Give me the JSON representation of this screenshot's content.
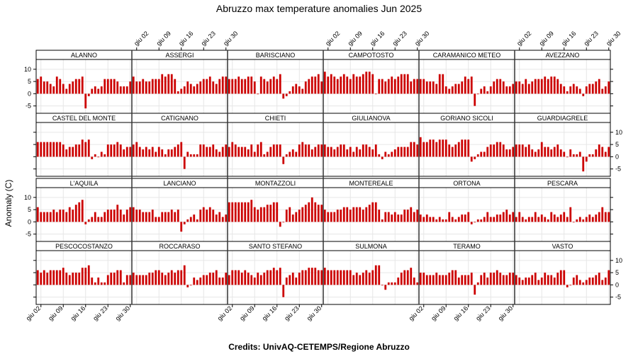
{
  "title": "Abruzzo max temperature anomalies Jun 2025",
  "ylabel": "Anomaly (C)",
  "credits": "Credits: UnivAQ-CETEMPS/Regione Abruzzo",
  "colors": {
    "bar": "#cc0000",
    "grid": "#e6e6e6",
    "frame": "#000000",
    "strip": "#ffffff"
  },
  "chart_data": {
    "type": "bar",
    "layout": {
      "columns": 6,
      "rows": 4
    },
    "x": {
      "start_day": 1,
      "days": 30,
      "tick_days": [
        2,
        9,
        16,
        23,
        30
      ],
      "tick_labels": [
        "giu 02",
        "giu 09",
        "giu 16",
        "giu 23",
        "giu 30"
      ]
    },
    "y": {
      "ylim": [
        -8,
        14
      ],
      "ticks": [
        -5,
        0,
        5,
        10
      ],
      "tick_labels": [
        "-5",
        "0",
        "5",
        "10"
      ]
    },
    "grid": true,
    "panels": [
      {
        "name": "ALANNO",
        "values": [
          6,
          7,
          5,
          5,
          4,
          3,
          7,
          6,
          4,
          2,
          4,
          5,
          6,
          6,
          7,
          -6,
          -1,
          2,
          3,
          2,
          3,
          6,
          6,
          6,
          6,
          5,
          3,
          3,
          3,
          5
        ]
      },
      {
        "name": "ASSERGI",
        "values": [
          7,
          5,
          5,
          6,
          5,
          5,
          6,
          6,
          6,
          8,
          7,
          8,
          8,
          6,
          1,
          2,
          3,
          5,
          4,
          3,
          4,
          5,
          6,
          6,
          7,
          5,
          4,
          6,
          7,
          7
        ]
      },
      {
        "name": "BARISCIANO",
        "values": [
          6,
          6,
          6,
          7,
          6,
          6,
          7,
          7,
          5,
          0,
          7,
          6,
          5,
          6,
          7,
          6,
          8,
          -2,
          -1,
          1,
          3,
          4,
          3,
          2,
          5,
          6,
          7,
          7,
          8,
          5
        ]
      },
      {
        "name": "CAMPOTOSTO",
        "values": [
          9,
          7,
          8,
          7,
          6,
          7,
          8,
          7,
          6,
          8,
          7,
          7,
          8,
          9,
          9,
          8,
          0,
          6,
          6,
          5,
          6,
          7,
          6,
          7,
          8,
          8,
          8,
          5,
          6,
          6
        ]
      },
      {
        "name": "CARAMANICO METEO",
        "values": [
          6,
          6,
          5,
          5,
          5,
          4,
          8,
          8,
          3,
          2,
          3,
          4,
          4,
          5,
          7,
          6,
          7,
          -5,
          0,
          2,
          3,
          1,
          3,
          5,
          6,
          6,
          5,
          3,
          3,
          4
        ]
      },
      {
        "name": "AVEZZANO",
        "values": [
          5,
          5,
          4,
          6,
          4,
          5,
          6,
          6,
          6,
          7,
          6,
          7,
          7,
          6,
          4,
          3,
          1,
          3,
          4,
          3,
          2,
          -1,
          3,
          4,
          4,
          5,
          6,
          2,
          3,
          5
        ]
      },
      {
        "name": "CASTEL DEL MONTE",
        "values": [
          6,
          6,
          6,
          6,
          6,
          6,
          6,
          6,
          5,
          3,
          4,
          4,
          5,
          5,
          7,
          6,
          7,
          -1,
          1,
          0,
          2,
          1,
          5,
          5,
          5,
          6,
          5,
          3,
          4,
          4
        ]
      },
      {
        "name": "CATIGNANO",
        "values": [
          5,
          6,
          4,
          3,
          4,
          3,
          4,
          2,
          4,
          3,
          1,
          3,
          3,
          4,
          5,
          6,
          -5,
          2,
          1,
          1,
          1,
          5,
          5,
          4,
          4,
          5,
          3,
          2,
          4,
          5
        ]
      },
      {
        "name": "CHIETI",
        "values": [
          4,
          6,
          5,
          4,
          4,
          4,
          3,
          5,
          2,
          5,
          6,
          1,
          2,
          4,
          5,
          5,
          5,
          -3,
          1,
          2,
          3,
          2,
          5,
          6,
          5,
          5,
          3,
          4,
          5,
          5
        ]
      },
      {
        "name": "GIULIANOVA",
        "values": [
          5,
          4,
          4,
          3,
          4,
          5,
          5,
          3,
          4,
          2,
          4,
          3,
          5,
          5,
          4,
          3,
          5,
          1,
          -1,
          2,
          1,
          2,
          3,
          4,
          4,
          4,
          4,
          6,
          6,
          5
        ]
      },
      {
        "name": "GORIANO SICOLI",
        "values": [
          8,
          6,
          6,
          7,
          7,
          6,
          7,
          7,
          7,
          5,
          4,
          5,
          6,
          7,
          7,
          7,
          -2,
          -1,
          1,
          2,
          2,
          4,
          5,
          5,
          6,
          6,
          5,
          3,
          3,
          4
        ]
      },
      {
        "name": "GUARDIAGRELE",
        "values": [
          5,
          5,
          5,
          4,
          5,
          3,
          2,
          3,
          6,
          4,
          4,
          3,
          4,
          5,
          3,
          2,
          0,
          3,
          1,
          1,
          2,
          -6,
          -2,
          1,
          1,
          3,
          5,
          4,
          2,
          4
        ]
      },
      {
        "name": "L'AQUILA",
        "values": [
          6,
          4,
          4,
          4,
          4,
          5,
          4,
          5,
          5,
          4,
          6,
          5,
          7,
          8,
          9,
          -1,
          1,
          2,
          4,
          2,
          2,
          4,
          5,
          5,
          5,
          7,
          5,
          3,
          5,
          6
        ]
      },
      {
        "name": "LANCIANO",
        "values": [
          6,
          5,
          5,
          4,
          4,
          4,
          5,
          2,
          2,
          4,
          4,
          4,
          5,
          4,
          5,
          -4,
          -1,
          1,
          2,
          3,
          1,
          5,
          6,
          5,
          6,
          5,
          3,
          4,
          2,
          3
        ]
      },
      {
        "name": "MONTAZZOLI",
        "values": [
          8,
          8,
          8,
          8,
          8,
          8,
          8,
          9,
          6,
          5,
          6,
          6,
          7,
          7,
          8,
          8,
          -2,
          0,
          5,
          6,
          3,
          4,
          5,
          6,
          7,
          8,
          10,
          8,
          7,
          7
        ]
      },
      {
        "name": "MONTEREALE",
        "values": [
          5,
          4,
          4,
          4,
          5,
          5,
          6,
          6,
          5,
          6,
          6,
          6,
          5,
          6,
          7,
          8,
          8,
          5,
          1,
          4,
          4,
          3,
          4,
          3,
          3,
          5,
          5,
          6,
          4,
          5
        ]
      },
      {
        "name": "ORTONA",
        "values": [
          3,
          2,
          3,
          2,
          2,
          1,
          2,
          1,
          1,
          4,
          2,
          1,
          2,
          3,
          3,
          4,
          -1,
          0,
          1,
          1,
          2,
          4,
          2,
          2,
          3,
          3,
          4,
          5,
          3,
          4
        ]
      },
      {
        "name": "PESCARA",
        "values": [
          2,
          4,
          2,
          1,
          2,
          2,
          4,
          2,
          3,
          2,
          1,
          4,
          3,
          2,
          3,
          4,
          2,
          6,
          0,
          1,
          2,
          1,
          2,
          3,
          2,
          3,
          4,
          6,
          4,
          4
        ]
      },
      {
        "name": "PESCOCOSTANZO",
        "values": [
          6,
          5,
          6,
          5,
          6,
          6,
          6,
          6,
          7,
          5,
          4,
          5,
          5,
          5,
          7,
          7,
          8,
          3,
          1,
          3,
          1,
          1,
          4,
          5,
          5,
          6,
          6,
          1,
          4,
          4
        ]
      },
      {
        "name": "ROCCARASO",
        "values": [
          5,
          4,
          4,
          4,
          4,
          5,
          5,
          6,
          6,
          5,
          4,
          5,
          6,
          5,
          6,
          6,
          8,
          -1,
          0,
          3,
          2,
          3,
          4,
          4,
          5,
          5,
          6,
          3,
          3,
          5
        ]
      },
      {
        "name": "SANTO STEFANO",
        "values": [
          4,
          6,
          6,
          6,
          5,
          6,
          5,
          4,
          3,
          5,
          4,
          5,
          6,
          6,
          7,
          6,
          7,
          -5,
          3,
          4,
          5,
          3,
          5,
          6,
          6,
          7,
          7,
          7,
          6,
          6
        ]
      },
      {
        "name": "SULMONA",
        "values": [
          7,
          6,
          6,
          6,
          6,
          6,
          6,
          6,
          6,
          4,
          5,
          4,
          5,
          6,
          5,
          6,
          8,
          8,
          0,
          -2,
          1,
          1,
          1,
          3,
          5,
          6,
          6,
          7,
          3,
          1
        ]
      },
      {
        "name": "TERAMO",
        "values": [
          5,
          5,
          4,
          4,
          4,
          5,
          4,
          4,
          4,
          5,
          6,
          6,
          3,
          4,
          4,
          4,
          5,
          -4,
          1,
          4,
          5,
          3,
          5,
          5,
          6,
          5,
          4,
          4,
          5,
          5
        ]
      },
      {
        "name": "VASTO",
        "values": [
          4,
          3,
          2,
          3,
          3,
          4,
          5,
          2,
          3,
          5,
          4,
          4,
          3,
          5,
          6,
          6,
          -1,
          0,
          3,
          4,
          2,
          1,
          2,
          3,
          3,
          4,
          5,
          2,
          3,
          6
        ]
      }
    ]
  }
}
